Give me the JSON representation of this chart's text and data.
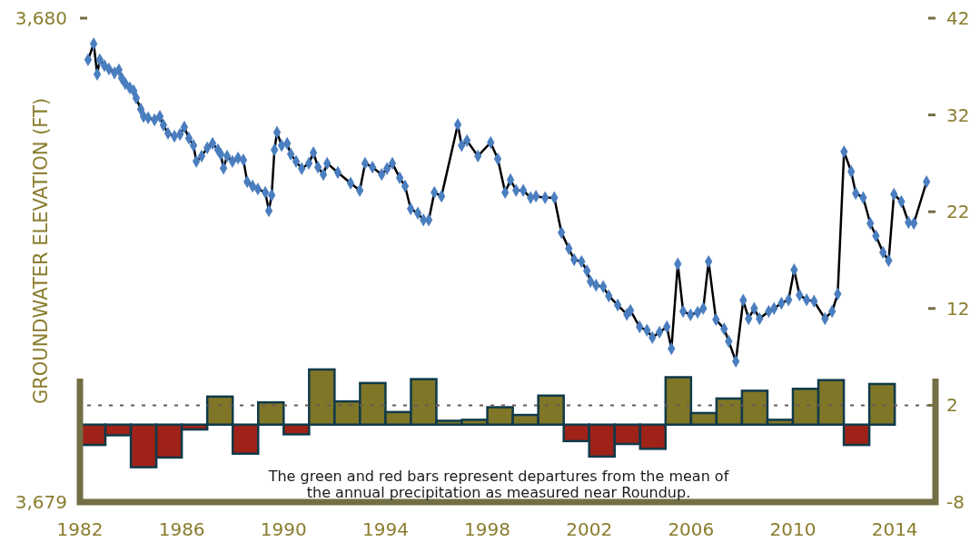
{
  "chart_data": {
    "type": "line",
    "ylabel": "GROUNDWATER ELEVATION (FT)",
    "xlim": [
      1982,
      2015.6
    ],
    "xticks": [
      1982,
      1986,
      1990,
      1994,
      1998,
      2002,
      2006,
      2010,
      2014
    ],
    "ylim": [
      3679,
      3680
    ],
    "yticks": [
      {
        "value": 3679,
        "label": "3,679"
      },
      {
        "value": 3680,
        "label": "3,680"
      }
    ],
    "y2lim": [
      -8,
      42
    ],
    "y2ticks": [
      -8,
      2,
      12,
      22,
      32,
      42
    ],
    "marker": "diamond",
    "line_style": "solid",
    "series": [
      {
        "type": "bar",
        "axis": "y2",
        "x": [
          1982.5,
          1983.5,
          1984.5,
          1985.5,
          1986.5,
          1987.5,
          1988.5,
          1989.5,
          1990.5,
          1991.5,
          1992.5,
          1993.5,
          1994.5,
          1995.5,
          1996.5,
          1997.5,
          1998.5,
          1999.5,
          2000.5,
          2001.5,
          2002.5,
          2003.5,
          2004.5,
          2005.5,
          2006.5,
          2007.5,
          2008.5,
          2009.5,
          2010.5,
          2011.5,
          2012.5,
          2013.5
        ],
        "values": [
          -2.1,
          -1.1,
          -4.4,
          -3.4,
          -0.5,
          2.9,
          -3.0,
          2.3,
          -1.0,
          5.7,
          2.4,
          4.3,
          1.3,
          4.7,
          0.4,
          0.5,
          1.8,
          1.0,
          3.0,
          -1.7,
          -3.3,
          -2.0,
          -2.5,
          4.9,
          1.2,
          2.7,
          3.5,
          0.5,
          3.7,
          4.6,
          -2.1,
          4.2
        ],
        "colors": [
          "#9e2218",
          "#9e2218",
          "#9e2218",
          "#9e2218",
          "#9e2218",
          "#807627",
          "#9e2218",
          "#807627",
          "#9e2218",
          "#807627",
          "#807627",
          "#807627",
          "#807627",
          "#807627",
          "#807627",
          "#807627",
          "#807627",
          "#807627",
          "#807627",
          "#9e2218",
          "#9e2218",
          "#9e2218",
          "#9e2218",
          "#807627",
          "#807627",
          "#807627",
          "#807627",
          "#807627",
          "#807627",
          "#807627",
          "#9e2218",
          "#807627"
        ]
      },
      {
        "color": "#4a7ebf",
        "x": [
          1982.32,
          1982.54,
          1982.68,
          1982.78,
          1982.96,
          1983.14,
          1983.36,
          1983.53,
          1983.64,
          1983.78,
          1983.96,
          1984.11,
          1984.21,
          1984.39,
          1984.5,
          1984.68,
          1984.93,
          1985.14,
          1985.28,
          1985.46,
          1985.71,
          1985.93,
          1986.1,
          1986.28,
          1986.46,
          1986.57,
          1986.78,
          1987.0,
          1987.21,
          1987.42,
          1987.53,
          1987.64,
          1987.78,
          1987.99,
          1988.21,
          1988.42,
          1988.57,
          1988.78,
          1988.99,
          1989.28,
          1989.42,
          1989.53,
          1989.64,
          1989.74,
          1989.92,
          1990.14,
          1990.28,
          1990.49,
          1990.71,
          1990.99,
          1991.17,
          1991.35,
          1991.56,
          1991.71,
          1992.13,
          1992.63,
          1992.99,
          1993.2,
          1993.49,
          1993.85,
          1994.06,
          1994.27,
          1994.56,
          1994.77,
          1994.99,
          1995.27,
          1995.49,
          1995.7,
          1995.92,
          1996.2,
          1996.84,
          1996.99,
          1997.2,
          1997.63,
          1998.13,
          1998.41,
          1998.7,
          1998.91,
          1999.13,
          1999.41,
          1999.7,
          1999.91,
          2000.27,
          2000.63,
          2000.91,
          2001.2,
          2001.41,
          2001.7,
          2001.91,
          2002.05,
          2002.27,
          2002.55,
          2002.77,
          2003.12,
          2003.48,
          2003.62,
          2003.98,
          2004.27,
          2004.48,
          2004.76,
          2005.05,
          2005.23,
          2005.48,
          2005.69,
          2005.98,
          2006.26,
          2006.48,
          2006.69,
          2006.98,
          2007.3,
          2007.48,
          2007.76,
          2008.05,
          2008.26,
          2008.48,
          2008.69,
          2009.05,
          2009.26,
          2009.55,
          2009.83,
          2010.05,
          2010.26,
          2010.54,
          2010.83,
          2011.26,
          2011.54,
          2011.76,
          2012.01,
          2012.29,
          2012.47,
          2012.76,
          2013.04,
          2013.26,
          2013.54,
          2013.76,
          2013.97,
          2014.26,
          2014.54,
          2014.75,
          2015.25
        ],
        "values": [
          3679.914,
          3679.947,
          3679.884,
          3679.914,
          3679.902,
          3679.895,
          3679.887,
          3679.893,
          3679.876,
          3679.865,
          3679.856,
          3679.85,
          3679.835,
          3679.812,
          3679.797,
          3679.794,
          3679.79,
          3679.797,
          3679.779,
          3679.762,
          3679.756,
          3679.76,
          3679.775,
          3679.752,
          3679.737,
          3679.704,
          3679.715,
          3679.732,
          3679.741,
          3679.728,
          3679.719,
          3679.69,
          3679.715,
          3679.704,
          3679.711,
          3679.707,
          3679.662,
          3679.653,
          3679.647,
          3679.64,
          3679.602,
          3679.634,
          3679.728,
          3679.764,
          3679.737,
          3679.741,
          3679.719,
          3679.704,
          3679.689,
          3679.7,
          3679.722,
          3679.692,
          3679.677,
          3679.7,
          3679.681,
          3679.659,
          3679.644,
          3679.7,
          3679.692,
          3679.677,
          3679.689,
          3679.7,
          3679.67,
          3679.653,
          3679.606,
          3679.597,
          3679.583,
          3679.583,
          3679.64,
          3679.632,
          3679.78,
          3679.737,
          3679.747,
          3679.715,
          3679.743,
          3679.709,
          3679.64,
          3679.666,
          3679.644,
          3679.644,
          3679.629,
          3679.632,
          3679.629,
          3679.629,
          3679.557,
          3679.524,
          3679.501,
          3679.497,
          3679.478,
          3679.456,
          3679.448,
          3679.445,
          3679.426,
          3679.407,
          3679.388,
          3679.396,
          3679.362,
          3679.355,
          3679.34,
          3679.351,
          3679.362,
          3679.317,
          3679.492,
          3679.394,
          3679.387,
          3679.392,
          3679.4,
          3679.497,
          3679.377,
          3679.358,
          3679.332,
          3679.291,
          3679.417,
          3679.379,
          3679.4,
          3679.379,
          3679.394,
          3679.4,
          3679.411,
          3679.418,
          3679.48,
          3679.428,
          3679.418,
          3679.415,
          3679.379,
          3679.394,
          3679.43,
          3679.724,
          3679.683,
          3679.638,
          3679.629,
          3679.576,
          3679.55,
          3679.516,
          3679.499,
          3679.636,
          3679.621,
          3679.578,
          3679.576,
          3679.662
        ]
      }
    ],
    "ref_lines": [
      {
        "axis": "y2",
        "value": 2,
        "color": "#6b5a55",
        "line_style": "dashed"
      }
    ],
    "annotations": [
      "The green and red bars represent departures from the mean of\nthe annual precipitation as measured near Roundup."
    ]
  }
}
